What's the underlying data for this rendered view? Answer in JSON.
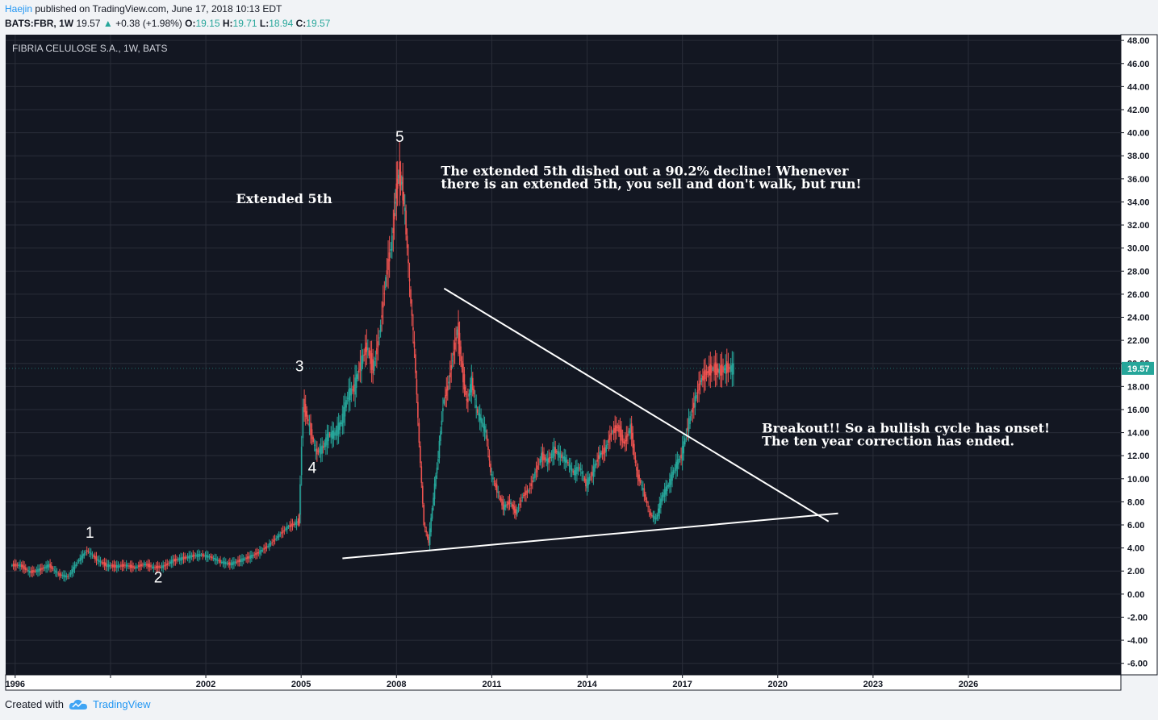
{
  "header": {
    "author": "Haejin",
    "published": " published on TradingView.com, June 17, 2018 10:13 EDT",
    "symbol": "BATS:FBR, 1W",
    "price": "19.57",
    "change_arrow": "▲",
    "change": "+0.38 (+1.98%)",
    "o_label": "O:",
    "o": "19.15",
    "h_label": "H:",
    "h": "19.71",
    "l_label": "L:",
    "l": "18.94",
    "c_label": "C:",
    "c": "19.57"
  },
  "footer": {
    "created_with": "Created with",
    "brand": "TradingView"
  },
  "colors": {
    "background": "#131722",
    "grid": "#2a2e39",
    "up": "#26a69a",
    "down": "#ef5350",
    "price_tag": "#26a69a"
  },
  "chart_data": {
    "type": "candlestick",
    "title": "FIBRIA CELULOSE S.A., 1W, BATS",
    "last_price": "19.57",
    "ylim": [
      -7,
      48.5
    ],
    "xlim": [
      1995.7,
      2030.8
    ],
    "y_ticks": [
      "48.00",
      "46.00",
      "44.00",
      "42.00",
      "40.00",
      "38.00",
      "36.00",
      "34.00",
      "32.00",
      "30.00",
      "28.00",
      "26.00",
      "24.00",
      "22.00",
      "20.00",
      "18.00",
      "16.00",
      "14.00",
      "12.00",
      "10.00",
      "8.00",
      "6.00",
      "4.00",
      "2.00",
      "0.00",
      "-2.00",
      "-4.00",
      "-6.00"
    ],
    "y_tick_values": [
      48,
      46,
      44,
      42,
      40,
      38,
      36,
      34,
      32,
      30,
      28,
      26,
      24,
      22,
      20,
      18,
      16,
      14,
      12,
      10,
      8,
      6,
      4,
      2,
      0,
      -2,
      -4,
      -6
    ],
    "x_ticks": [
      "1996",
      "2002",
      "2005",
      "2008",
      "2011",
      "2014",
      "2017",
      "2020",
      "2023",
      "2026"
    ],
    "x_tick_values": [
      1996,
      1999,
      2002,
      2005,
      2008,
      2011,
      2014,
      2017,
      2020,
      2023,
      2026
    ],
    "x_tick_labels": [
      "1996",
      "",
      "2002",
      "2005",
      "2008",
      "2011",
      "2014",
      "2017",
      "2020",
      "2023",
      "2026"
    ],
    "series": [
      {
        "name": "FBR",
        "x": [
          1995.9,
          1996.2,
          1996.5,
          1996.8,
          1997.1,
          1997.4,
          1997.7,
          1998.0,
          1998.3,
          1998.6,
          1998.9,
          1999.2,
          1999.5,
          1999.8,
          2000.1,
          2000.4,
          2000.7,
          2001.0,
          2001.3,
          2001.6,
          2001.9,
          2002.2,
          2002.5,
          2002.8,
          2003.1,
          2003.4,
          2003.7,
          2004.0,
          2004.3,
          2004.6,
          2004.9,
          2004.97,
          2005.1,
          2005.3,
          2005.5,
          2005.7,
          2005.9,
          2006.1,
          2006.3,
          2006.5,
          2006.7,
          2006.9,
          2007.1,
          2007.3,
          2007.5,
          2007.7,
          2007.9,
          2008.0,
          2008.1,
          2008.2,
          2008.3,
          2008.45,
          2008.6,
          2008.75,
          2008.9,
          2009.05,
          2009.2,
          2009.35,
          2009.5,
          2009.65,
          2009.8,
          2009.95,
          2010.1,
          2010.25,
          2010.4,
          2010.55,
          2010.7,
          2010.85,
          2011.0,
          2011.2,
          2011.4,
          2011.6,
          2011.8,
          2012.0,
          2012.2,
          2012.4,
          2012.6,
          2012.8,
          2013.0,
          2013.2,
          2013.4,
          2013.6,
          2013.8,
          2014.0,
          2014.2,
          2014.4,
          2014.6,
          2014.8,
          2015.0,
          2015.2,
          2015.4,
          2015.6,
          2015.8,
          2016.0,
          2016.2,
          2016.4,
          2016.6,
          2016.8,
          2017.0,
          2017.2,
          2017.4,
          2017.6,
          2017.8,
          2018.0,
          2018.2,
          2018.4
        ],
        "y": [
          2.5,
          1.9,
          2.1,
          2.5,
          1.7,
          1.5,
          2.8,
          3.8,
          3.0,
          2.5,
          2.4,
          2.5,
          2.3,
          2.6,
          2.3,
          2.4,
          2.9,
          3.1,
          3.3,
          3.4,
          3.2,
          2.8,
          2.6,
          2.9,
          3.2,
          3.6,
          4.2,
          5.0,
          5.8,
          6.2,
          6.5,
          16.5,
          14.5,
          12.3,
          12.6,
          13.8,
          13.9,
          14.9,
          17.2,
          17.9,
          19.9,
          21.5,
          19.5,
          22.5,
          27.5,
          30.8,
          34.5,
          36.5,
          35.5,
          33.0,
          26.5,
          21.0,
          13.0,
          6.0,
          4.5,
          8.5,
          12.0,
          16.5,
          18.0,
          20.5,
          23.0,
          19.5,
          16.5,
          18.5,
          16.0,
          15.0,
          14.0,
          10.5,
          9.0,
          7.5,
          8.0,
          7.0,
          8.5,
          9.0,
          10.5,
          12.0,
          11.5,
          12.5,
          12.0,
          11.5,
          10.5,
          11.0,
          9.5,
          10.5,
          12.0,
          12.5,
          14.0,
          14.5,
          13.0,
          14.5,
          10.5,
          9.0,
          7.0,
          6.5,
          8.5,
          9.5,
          11.0,
          12.0,
          14.5,
          16.5,
          18.5,
          19.2,
          19.57,
          19.3,
          19.6,
          19.57
        ]
      }
    ],
    "wave_labels": [
      {
        "label": "1",
        "x": 1998.35,
        "y": 4.9
      },
      {
        "label": "2",
        "x": 2000.5,
        "y": 1.0
      },
      {
        "label": "3",
        "x": 2004.95,
        "y": 19.3
      },
      {
        "label": "4",
        "x": 2005.35,
        "y": 10.5
      },
      {
        "label": "5",
        "x": 2008.1,
        "y": 39.2
      }
    ],
    "annotations": [
      {
        "text": "Extended 5th",
        "x": 2002.95,
        "y": 33.9
      },
      {
        "text": "The extended 5th dished out a 90.2% decline! Whenever",
        "x": 2009.4,
        "y": 36.3
      },
      {
        "text": "there is an extended 5th, you sell and don't walk, but run!",
        "x": 2009.4,
        "y": 35.2
      },
      {
        "text": "Breakout!! So a bullish cycle has onset!",
        "x": 2019.5,
        "y": 14.0
      },
      {
        "text": "The ten year correction has ended.",
        "x": 2019.5,
        "y": 12.9
      }
    ],
    "trendlines": [
      {
        "name": "resistance",
        "x1": 2009.5,
        "y1": 26.5,
        "x2": 2021.6,
        "y2": 6.3
      },
      {
        "name": "support",
        "x1": 2006.3,
        "y1": 3.1,
        "x2": 2021.9,
        "y2": 7.0
      }
    ],
    "grid": true
  }
}
